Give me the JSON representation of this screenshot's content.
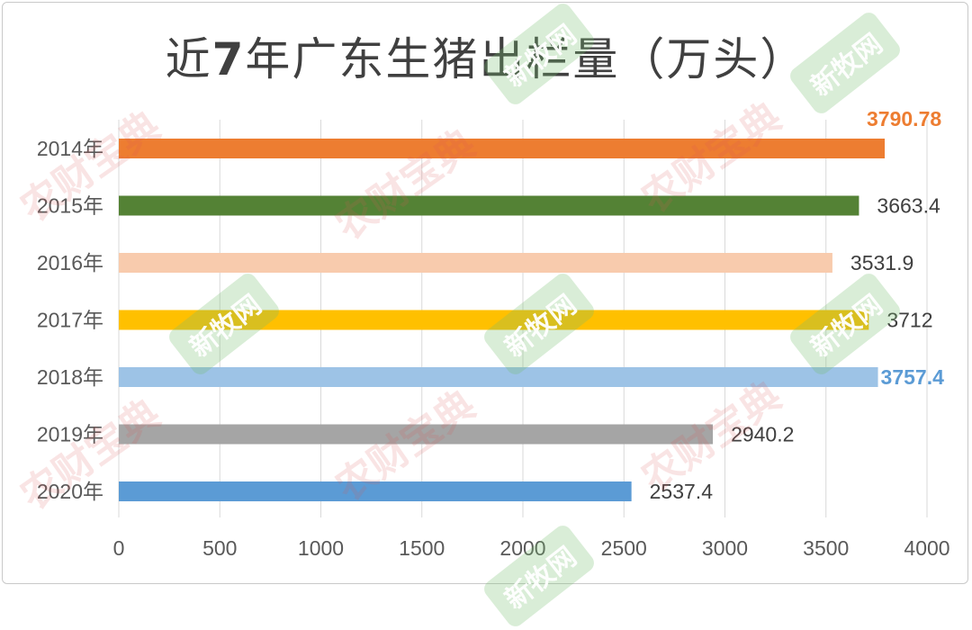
{
  "title_prefix": "近",
  "title_bold": "7",
  "title_suffix": "年广东生猪出栏量（万头）",
  "watermarks": {
    "red": "农财宝典",
    "green": "新牧网"
  },
  "chart_data": {
    "type": "bar",
    "orientation": "horizontal",
    "title": "近7年广东生猪出栏量（万头）",
    "categories": [
      "2014年",
      "2015年",
      "2016年",
      "2017年",
      "2018年",
      "2019年",
      "2020年"
    ],
    "values": [
      3790.78,
      3663.4,
      3531.9,
      3712,
      3757.4,
      2940.2,
      2537.4
    ],
    "value_labels": [
      "3790.78",
      "3663.4",
      "3531.9",
      "3712",
      "3757.4",
      "2940.2",
      "2537.4"
    ],
    "colors": [
      "#ED7D31",
      "#548235",
      "#F8CBAD",
      "#FFC000",
      "#9DC3E6",
      "#A5A5A5",
      "#5B9BD5"
    ],
    "label_colors": [
      "#ED7D31",
      "#404040",
      "#404040",
      "#404040",
      "#5B9BD5",
      "#404040",
      "#404040"
    ],
    "label_bold": [
      true,
      false,
      false,
      false,
      true,
      false,
      false
    ],
    "xlim": [
      0,
      4000
    ],
    "xticks": [
      0,
      500,
      1000,
      1500,
      2000,
      2500,
      3000,
      3500,
      4000
    ],
    "grid": true,
    "legend": "none"
  }
}
